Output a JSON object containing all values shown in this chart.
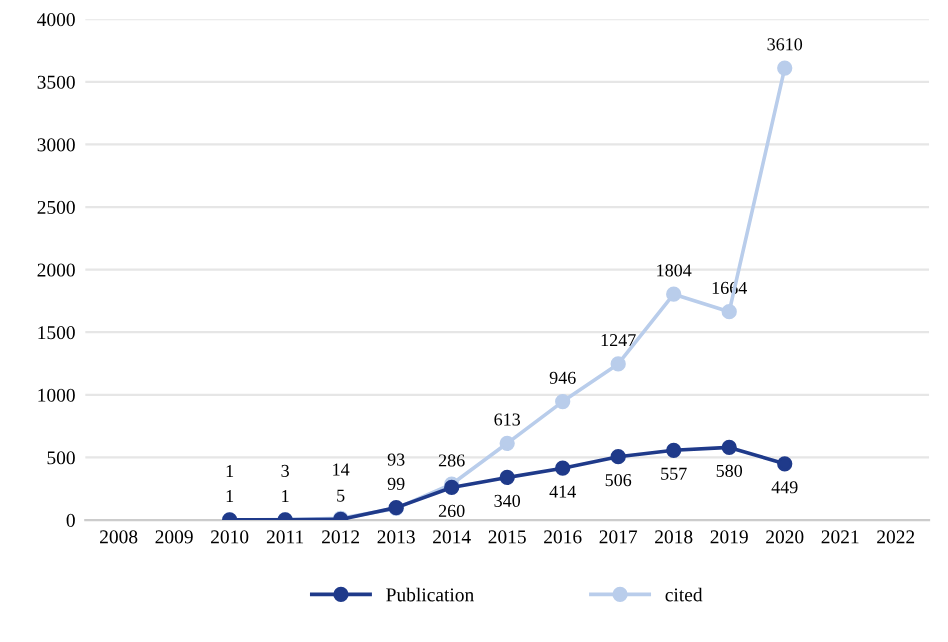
{
  "chart_data": {
    "type": "line",
    "categories": [
      "2008",
      "2009",
      "2010",
      "2011",
      "2012",
      "2013",
      "2014",
      "2015",
      "2016",
      "2017",
      "2018",
      "2019",
      "2020",
      "2021",
      "2022"
    ],
    "series": [
      {
        "name": "Publication",
        "color": "#1f3a8a",
        "values": [
          null,
          null,
          1,
          1,
          5,
          99,
          260,
          340,
          414,
          506,
          557,
          580,
          449,
          null,
          null
        ]
      },
      {
        "name": "cited",
        "color": "#b9cdeb",
        "values": [
          null,
          null,
          1,
          3,
          14,
          93,
          286,
          613,
          946,
          1247,
          1804,
          1664,
          3610,
          null,
          null
        ]
      }
    ],
    "ylim": [
      0,
      4000
    ],
    "yticks": [
      0,
      500,
      1000,
      1500,
      2000,
      2500,
      3000,
      3500,
      4000
    ],
    "grid": "y",
    "legend": "bottom",
    "marker": "circle",
    "line_style": "solid",
    "data_labels": true
  }
}
